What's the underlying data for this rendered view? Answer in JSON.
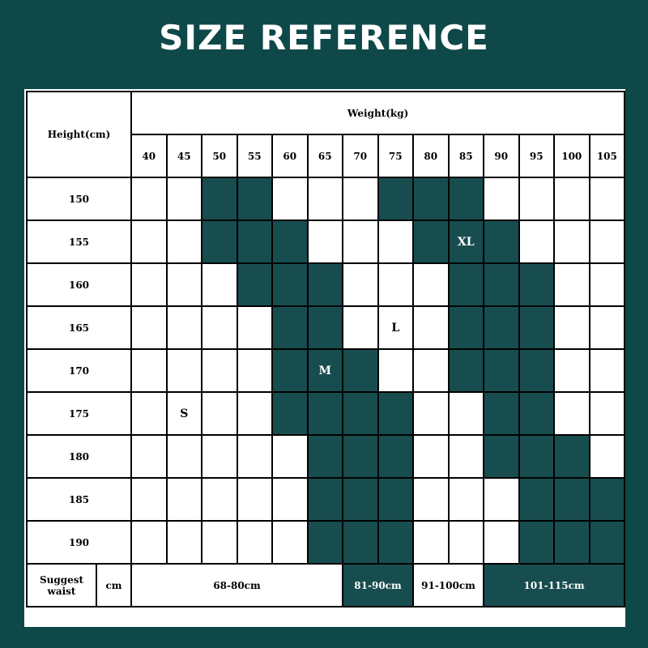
{
  "title": "SIZE REFERENCE",
  "colors": {
    "background": "#0f4848",
    "highlight": "#184d4f",
    "cell": "#ffffff"
  },
  "header": {
    "height_label": "Height(cm)",
    "weight_label": "Weight(kg)"
  },
  "weights": [
    "40",
    "45",
    "50",
    "55",
    "60",
    "65",
    "70",
    "75",
    "80",
    "85",
    "90",
    "95",
    "100",
    "105"
  ],
  "rows": [
    {
      "height": "150",
      "highlighted": [
        "50",
        "55",
        "75",
        "80",
        "85"
      ]
    },
    {
      "height": "155",
      "highlighted": [
        "50",
        "55",
        "60",
        "80",
        "85",
        "90"
      ]
    },
    {
      "height": "160",
      "highlighted": [
        "55",
        "60",
        "65",
        "85",
        "90",
        "95"
      ]
    },
    {
      "height": "165",
      "highlighted": [
        "60",
        "65",
        "85",
        "90",
        "95"
      ]
    },
    {
      "height": "170",
      "highlighted": [
        "60",
        "65",
        "70",
        "85",
        "90",
        "95"
      ]
    },
    {
      "height": "175",
      "highlighted": [
        "60",
        "65",
        "70",
        "75",
        "90",
        "95"
      ]
    },
    {
      "height": "180",
      "highlighted": [
        "65",
        "70",
        "75",
        "90",
        "95",
        "100"
      ]
    },
    {
      "height": "185",
      "highlighted": [
        "65",
        "70",
        "75",
        "95",
        "100",
        "105"
      ]
    },
    {
      "height": "190",
      "highlighted": [
        "65",
        "70",
        "75",
        "95",
        "100",
        "105"
      ]
    }
  ],
  "size_labels": [
    {
      "height": "155",
      "weight": "85",
      "text": "XL"
    },
    {
      "height": "165",
      "weight": "75",
      "text": "L"
    },
    {
      "height": "170",
      "weight": "65",
      "text": "M"
    },
    {
      "height": "175",
      "weight": "45",
      "text": "S"
    }
  ],
  "waist": {
    "label": "Suggest waist",
    "unit": "cm",
    "ranges": [
      {
        "text": "68-80cm",
        "span": 6,
        "highlighted": false
      },
      {
        "text": "81-90cm",
        "span": 2,
        "highlighted": true
      },
      {
        "text": "91-100cm",
        "span": 2,
        "highlighted": false
      },
      {
        "text": "101-115cm",
        "span": 4,
        "highlighted": true
      }
    ]
  }
}
